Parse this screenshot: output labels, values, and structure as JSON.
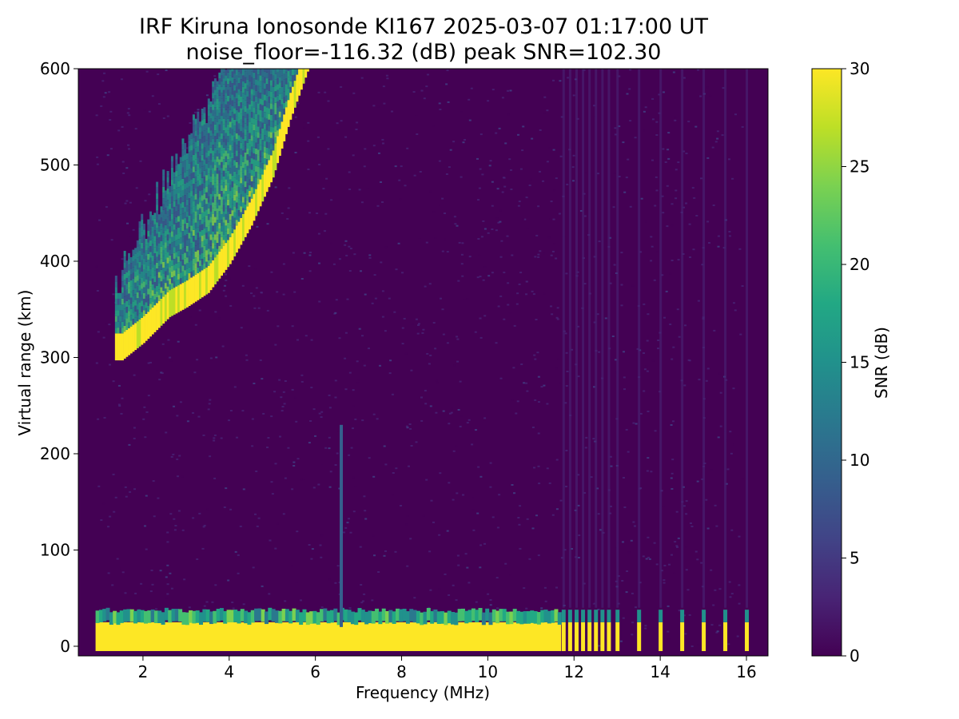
{
  "chart_data": {
    "type": "heatmap",
    "title_line1": "IRF Kiruna Ionosonde KI167 2025-03-07 01:17:00  UT",
    "title_line2": "noise_floor=-116.32 (dB) peak SNR=102.30",
    "xlabel": "Frequency (MHz)",
    "ylabel": "Virtual range (km)",
    "colorbar_label": "SNR (dB)",
    "colormap": "viridis",
    "xlim": [
      0.5,
      16.5
    ],
    "ylim": [
      -10,
      600
    ],
    "clim": [
      0,
      30
    ],
    "x_ticks": [
      2,
      4,
      6,
      8,
      10,
      12,
      14,
      16
    ],
    "y_ticks": [
      0,
      100,
      200,
      300,
      400,
      500,
      600
    ],
    "colorbar_ticks": [
      0,
      5,
      10,
      15,
      20,
      25,
      30
    ],
    "data_start_mhz": 0.9,
    "features": {
      "f_region_trace": {
        "description_points_mhz_km": [
          [
            1.5,
            300
          ],
          [
            2.0,
            318
          ],
          [
            2.6,
            345
          ],
          [
            3.0,
            355
          ],
          [
            3.5,
            370
          ],
          [
            4.0,
            400
          ],
          [
            4.5,
            440
          ],
          [
            5.0,
            490
          ],
          [
            5.4,
            550
          ],
          [
            5.8,
            600
          ]
        ],
        "snr_db": 30
      },
      "ground_echo": {
        "range_km": [
          -5,
          25
        ],
        "freq_mhz": [
          0.9,
          11.7
        ],
        "snr_db": 30
      },
      "interference_line": {
        "freq_mhz": 6.6,
        "range_km": [
          20,
          230
        ],
        "snr_db": 8
      },
      "discrete_pulses_mhz": [
        11.75,
        11.9,
        12.05,
        12.2,
        12.35,
        12.5,
        12.65,
        12.8,
        13.0,
        13.5,
        14.0,
        14.5,
        15.0,
        15.5,
        16.0
      ]
    }
  }
}
